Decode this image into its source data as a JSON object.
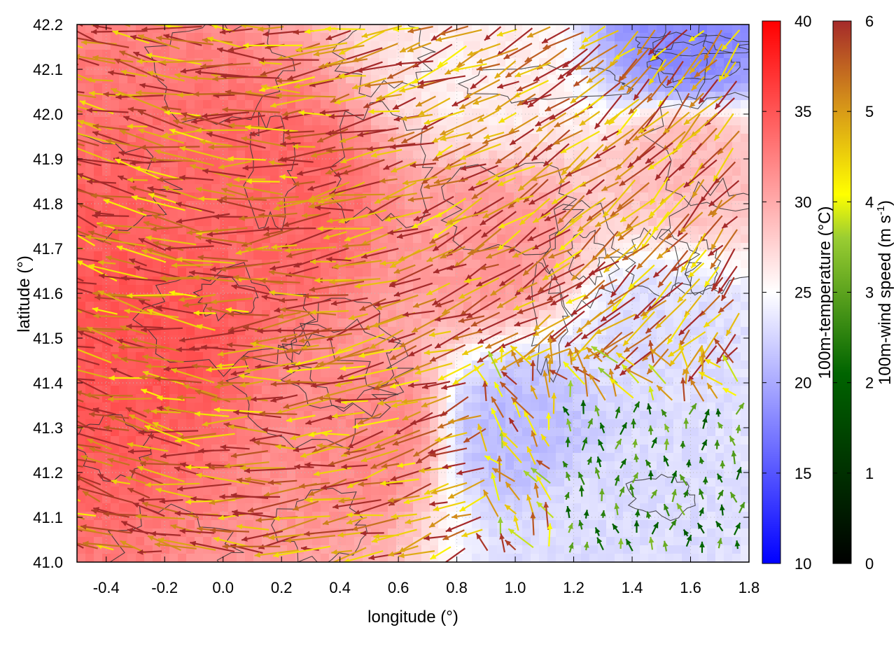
{
  "chart_data": {
    "type": "heatmap",
    "xlabel": "longitude (°)",
    "ylabel": "latitude (°)",
    "xlim": [
      -0.5,
      1.8
    ],
    "ylim": [
      41.0,
      42.2
    ],
    "x_ticks": [
      "-0.4",
      "-0.2",
      "0.0",
      "0.2",
      "0.4",
      "0.6",
      "0.8",
      "1.0",
      "1.2",
      "1.4",
      "1.6",
      "1.8"
    ],
    "x_tick_values": [
      -0.4,
      -0.2,
      0.0,
      0.2,
      0.4,
      0.6,
      0.8,
      1.0,
      1.2,
      1.4,
      1.6,
      1.8
    ],
    "y_ticks": [
      "41.0",
      "41.1",
      "41.2",
      "41.3",
      "41.4",
      "41.5",
      "41.6",
      "41.7",
      "41.8",
      "41.9",
      "42.0",
      "42.1",
      "42.2"
    ],
    "y_tick_values": [
      41.0,
      41.1,
      41.2,
      41.3,
      41.4,
      41.5,
      41.6,
      41.7,
      41.8,
      41.9,
      42.0,
      42.1,
      42.2
    ],
    "grid": true,
    "temperature_colorbar": {
      "label": "100m-temperature (°C)",
      "range": [
        10,
        40
      ],
      "ticks": [
        "10",
        "15",
        "20",
        "25",
        "30",
        "35",
        "40"
      ],
      "tick_values": [
        10,
        15,
        20,
        25,
        30,
        35,
        40
      ],
      "colors": [
        "#0000ff",
        "#ffffff",
        "#ff0000"
      ]
    },
    "wind_colorbar": {
      "label_main": "100m-wind speed (m s",
      "label_sup": "-1",
      "label_end": ")",
      "range": [
        0,
        6
      ],
      "ticks": [
        "0",
        "1",
        "2",
        "3",
        "4",
        "5",
        "6"
      ],
      "tick_values": [
        0,
        1,
        2,
        3,
        4,
        5,
        6
      ],
      "colors": [
        "#000000",
        "#006400",
        "#ffff00",
        "#a52a2a"
      ]
    },
    "temperature_field": {
      "description_hint": "warm west and north, cool pockets south-east and north-east",
      "regions": [
        {
          "lon": -0.3,
          "lat": 41.5,
          "temp": 35
        },
        {
          "lon": 0.2,
          "lat": 41.8,
          "temp": 34
        },
        {
          "lon": 0.5,
          "lat": 41.3,
          "temp": 32
        },
        {
          "lon": 0.9,
          "lat": 41.7,
          "temp": 31
        },
        {
          "lon": 1.0,
          "lat": 41.3,
          "temp": 21
        },
        {
          "lon": 1.3,
          "lat": 41.1,
          "temp": 23
        },
        {
          "lon": 1.5,
          "lat": 41.5,
          "temp": 23
        },
        {
          "lon": 1.6,
          "lat": 42.15,
          "temp": 18
        },
        {
          "lon": 0.9,
          "lat": 42.1,
          "temp": 26
        },
        {
          "lon": 1.6,
          "lat": 41.9,
          "temp": 29
        }
      ]
    },
    "wind_field": {
      "rule": "strong westward flow (~6 m/s) over most of the domain, weaker (~2-4 m/s) northward/north-westward winds in south-east corner near 1.2-1.8 lon, 41.0-41.35 lat"
    }
  }
}
